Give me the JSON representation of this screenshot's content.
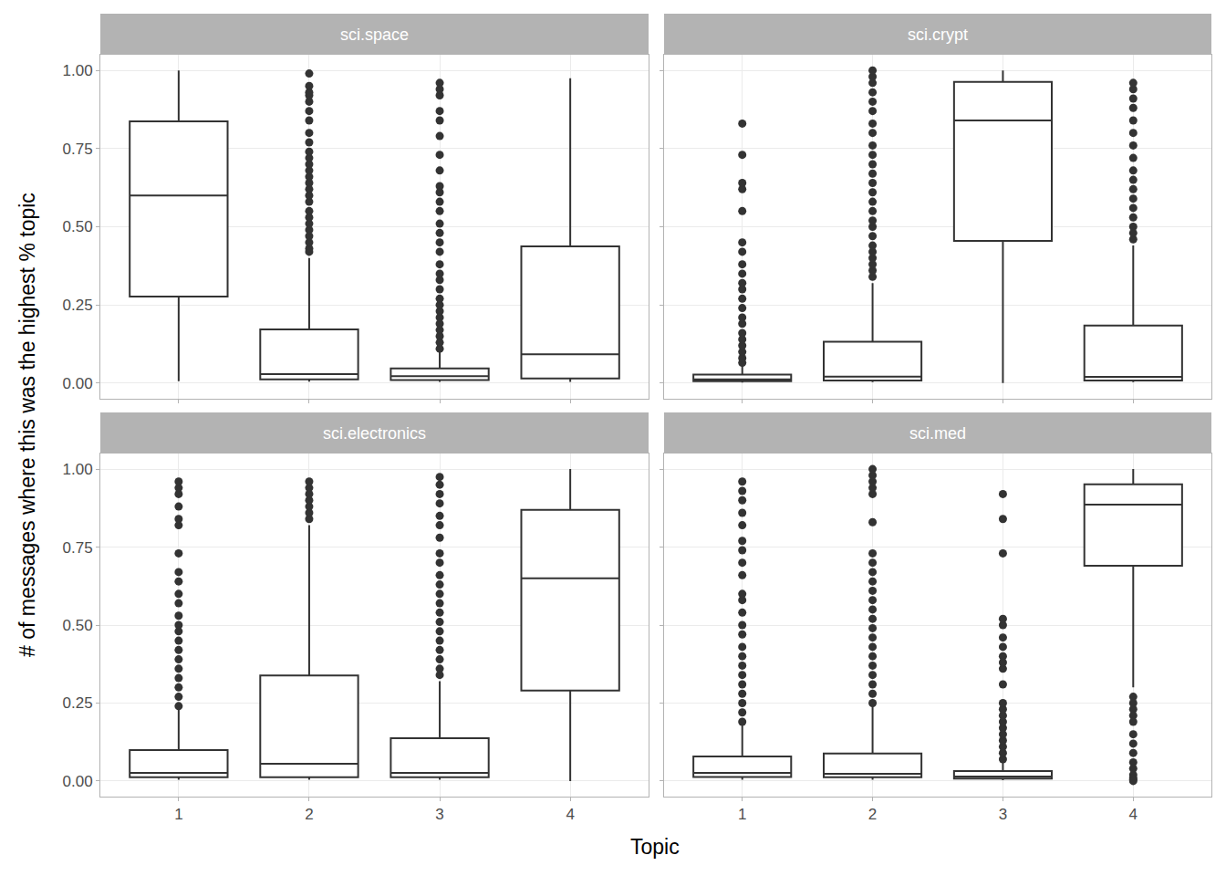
{
  "chart_data": {
    "type": "box",
    "x_label": "Topic",
    "y_label": "# of messages where this was the highest % topic",
    "categories": [
      "1",
      "2",
      "3",
      "4"
    ],
    "ylim": [
      -0.05,
      1.05
    ],
    "yticks": [
      {
        "value": 0,
        "label": "0.00"
      },
      0.25,
      {
        "value": 0.5,
        "label": "0.50"
      },
      0.75,
      {
        "value": 1,
        "label": "1.00"
      }
    ],
    "grid": true,
    "panels": [
      {
        "title": "sci.space",
        "boxes": [
          {
            "q1": 0.277,
            "median": 0.6,
            "q3": 0.837,
            "lower": 0.006,
            "upper": 1.0,
            "outliers": []
          },
          {
            "q1": 0.012,
            "median": 0.029,
            "q3": 0.172,
            "lower": 0.005,
            "upper": 0.4,
            "outliers": [
              0.42,
              0.43,
              0.45,
              0.47,
              0.49,
              0.51,
              0.53,
              0.55,
              0.58,
              0.6,
              0.62,
              0.64,
              0.66,
              0.68,
              0.7,
              0.72,
              0.74,
              0.77,
              0.8,
              0.84,
              0.87,
              0.9,
              0.92,
              0.93,
              0.95,
              0.99
            ]
          },
          {
            "q1": 0.01,
            "median": 0.022,
            "q3": 0.047,
            "lower": 0.004,
            "upper": 0.1,
            "outliers": [
              0.11,
              0.13,
              0.15,
              0.17,
              0.19,
              0.21,
              0.23,
              0.25,
              0.27,
              0.3,
              0.33,
              0.35,
              0.38,
              0.42,
              0.45,
              0.48,
              0.51,
              0.55,
              0.58,
              0.61,
              0.63,
              0.68,
              0.73,
              0.79,
              0.84,
              0.87,
              0.92,
              0.94,
              0.96
            ]
          },
          {
            "q1": 0.015,
            "median": 0.092,
            "q3": 0.437,
            "lower": 0.004,
            "upper": 0.975,
            "outliers": []
          }
        ]
      },
      {
        "title": "sci.crypt",
        "boxes": [
          {
            "q1": 0.006,
            "median": 0.012,
            "q3": 0.027,
            "lower": 0.002,
            "upper": 0.06,
            "outliers": [
              0.065,
              0.08,
              0.1,
              0.12,
              0.14,
              0.16,
              0.19,
              0.21,
              0.24,
              0.27,
              0.3,
              0.32,
              0.35,
              0.38,
              0.42,
              0.45,
              0.55,
              0.62,
              0.64,
              0.73,
              0.83
            ]
          },
          {
            "q1": 0.008,
            "median": 0.021,
            "q3": 0.132,
            "lower": 0.003,
            "upper": 0.32,
            "outliers": [
              0.34,
              0.36,
              0.38,
              0.4,
              0.42,
              0.44,
              0.47,
              0.5,
              0.52,
              0.55,
              0.58,
              0.61,
              0.64,
              0.67,
              0.7,
              0.73,
              0.76,
              0.8,
              0.83,
              0.87,
              0.9,
              0.93,
              0.96,
              0.98,
              1.0
            ]
          },
          {
            "q1": 0.455,
            "median": 0.84,
            "q3": 0.963,
            "lower": 0.0,
            "upper": 1.0,
            "outliers": []
          },
          {
            "q1": 0.008,
            "median": 0.02,
            "q3": 0.184,
            "lower": 0.003,
            "upper": 0.44,
            "outliers": [
              0.46,
              0.48,
              0.5,
              0.53,
              0.56,
              0.59,
              0.62,
              0.65,
              0.68,
              0.72,
              0.76,
              0.8,
              0.84,
              0.88,
              0.91,
              0.94,
              0.96
            ]
          }
        ]
      },
      {
        "title": "sci.electronics",
        "boxes": [
          {
            "q1": 0.012,
            "median": 0.026,
            "q3": 0.099,
            "lower": 0.004,
            "upper": 0.23,
            "outliers": [
              0.24,
              0.27,
              0.3,
              0.33,
              0.36,
              0.39,
              0.42,
              0.45,
              0.48,
              0.5,
              0.53,
              0.57,
              0.6,
              0.64,
              0.67,
              0.73,
              0.82,
              0.84,
              0.88,
              0.92,
              0.94,
              0.96
            ]
          },
          {
            "q1": 0.012,
            "median": 0.055,
            "q3": 0.338,
            "lower": 0.004,
            "upper": 0.82,
            "outliers": [
              0.84,
              0.86,
              0.88,
              0.9,
              0.92,
              0.94,
              0.96
            ]
          },
          {
            "q1": 0.012,
            "median": 0.026,
            "q3": 0.137,
            "lower": 0.004,
            "upper": 0.32,
            "outliers": [
              0.34,
              0.36,
              0.39,
              0.42,
              0.45,
              0.48,
              0.51,
              0.54,
              0.57,
              0.6,
              0.63,
              0.66,
              0.7,
              0.73,
              0.78,
              0.82,
              0.85,
              0.89,
              0.92,
              0.95,
              0.975
            ]
          },
          {
            "q1": 0.29,
            "median": 0.65,
            "q3": 0.869,
            "lower": 0.0,
            "upper": 1.0,
            "outliers": []
          }
        ]
      },
      {
        "title": "sci.med",
        "boxes": [
          {
            "q1": 0.013,
            "median": 0.026,
            "q3": 0.079,
            "lower": 0.004,
            "upper": 0.18,
            "outliers": [
              0.19,
              0.22,
              0.25,
              0.28,
              0.31,
              0.34,
              0.37,
              0.4,
              0.43,
              0.47,
              0.5,
              0.54,
              0.58,
              0.6,
              0.66,
              0.7,
              0.74,
              0.77,
              0.82,
              0.86,
              0.9,
              0.93,
              0.96
            ]
          },
          {
            "q1": 0.012,
            "median": 0.023,
            "q3": 0.088,
            "lower": 0.004,
            "upper": 0.24,
            "outliers": [
              0.25,
              0.28,
              0.31,
              0.34,
              0.37,
              0.4,
              0.43,
              0.46,
              0.49,
              0.52,
              0.55,
              0.58,
              0.61,
              0.64,
              0.67,
              0.7,
              0.73,
              0.83,
              0.92,
              0.94,
              0.96,
              0.98,
              1.0
            ]
          },
          {
            "q1": 0.008,
            "median": 0.014,
            "q3": 0.032,
            "lower": 0.003,
            "upper": 0.06,
            "outliers": [
              0.07,
              0.09,
              0.11,
              0.13,
              0.15,
              0.17,
              0.19,
              0.21,
              0.23,
              0.25,
              0.31,
              0.36,
              0.38,
              0.4,
              0.43,
              0.46,
              0.5,
              0.52,
              0.73,
              0.84,
              0.92
            ]
          },
          {
            "q1": 0.69,
            "median": 0.886,
            "q3": 0.951,
            "lower": 0.3,
            "upper": 1.0,
            "outliers": [
              0.27,
              0.25,
              0.23,
              0.21,
              0.19,
              0.15,
              0.12,
              0.09,
              0.06,
              0.04,
              0.02,
              0.01,
              0.005,
              0.0
            ]
          }
        ]
      }
    ]
  }
}
